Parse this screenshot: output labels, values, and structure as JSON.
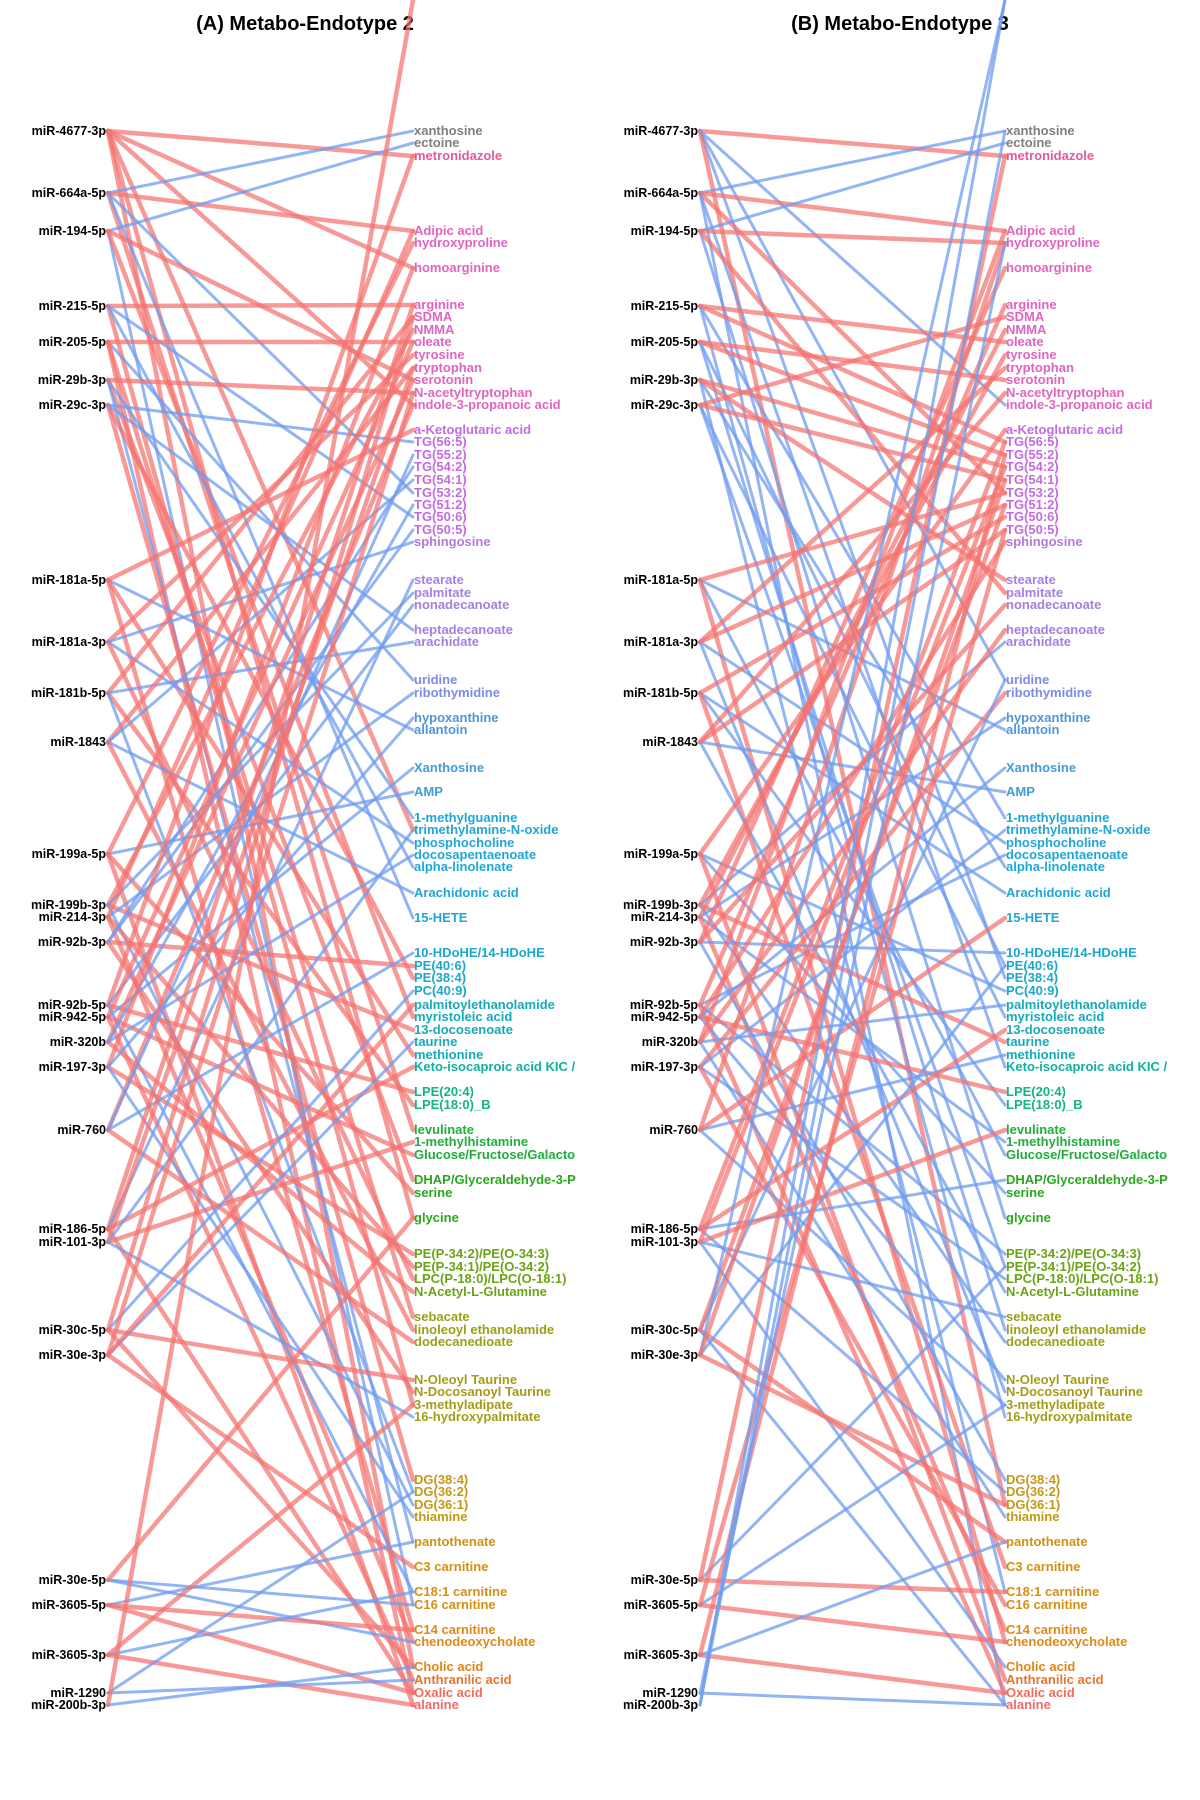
{
  "panels": [
    {
      "id": "A",
      "title": "(A) Metabo-Endotype 2"
    },
    {
      "id": "B",
      "title": "(B) Metabo-Endotype 3"
    }
  ],
  "mirnas": [
    "miR-4677-3p",
    "miR-664a-5p",
    "miR-194-5p",
    "miR-215-5p",
    "miR-205-5p",
    "miR-29b-3p",
    "miR-29c-3p",
    "miR-181a-5p",
    "miR-181a-3p",
    "miR-181b-5p",
    "miR-1843",
    "miR-199a-5p",
    "miR-199b-3p",
    "miR-214-3p",
    "miR-92b-3p",
    "miR-92b-5p",
    "miR-942-5p",
    "miR-320b",
    "miR-197-3p",
    "miR-760",
    "miR-186-5p",
    "miR-101-3p",
    "miR-30c-5p",
    "miR-30e-3p",
    "miR-30e-5p",
    "miR-3605-5p",
    "miR-3605-3p",
    "miR-1290",
    "miR-200b-3p"
  ],
  "metabolites": [
    {
      "name": "xanthosine",
      "color": "#7f7f7f"
    },
    {
      "name": "ectoine",
      "color": "#7f7f7f"
    },
    {
      "name": "metronidazole",
      "color": "#e6589b"
    },
    {
      "name": "Adipic acid",
      "color": "#e064c2"
    },
    {
      "name": "hydroxyproline",
      "color": "#e064c2"
    },
    {
      "name": "homoarginine",
      "color": "#e064c2"
    },
    {
      "name": "arginine",
      "color": "#e064c2"
    },
    {
      "name": "SDMA",
      "color": "#e064c2"
    },
    {
      "name": "NMMA",
      "color": "#e064c2"
    },
    {
      "name": "oleate",
      "color": "#e064c2"
    },
    {
      "name": "tyrosine",
      "color": "#e064c2"
    },
    {
      "name": "tryptophan",
      "color": "#e064c2"
    },
    {
      "name": "serotonin",
      "color": "#e064c2"
    },
    {
      "name": "N-acetyltryptophan",
      "color": "#e064c2"
    },
    {
      "name": "indole-3-propanoic acid",
      "color": "#e064c2"
    },
    {
      "name": "a-Ketoglutaric acid",
      "color": "#c46be0"
    },
    {
      "name": "TG(56:5)",
      "color": "#c46be0"
    },
    {
      "name": "TG(55:2)",
      "color": "#c46be0"
    },
    {
      "name": "TG(54:2)",
      "color": "#c46be0"
    },
    {
      "name": "TG(54:1)",
      "color": "#c46be0"
    },
    {
      "name": "TG(53:2)",
      "color": "#c46be0"
    },
    {
      "name": "TG(51:2)",
      "color": "#c46be0"
    },
    {
      "name": "TG(50:6)",
      "color": "#c46be0"
    },
    {
      "name": "TG(50:5)",
      "color": "#c46be0"
    },
    {
      "name": "sphingosine",
      "color": "#b27ae0"
    },
    {
      "name": "stearate",
      "color": "#a57fe0"
    },
    {
      "name": "palmitate",
      "color": "#a57fe0"
    },
    {
      "name": "nonadecanoate",
      "color": "#a57fe0"
    },
    {
      "name": "heptadecanoate",
      "color": "#a57fe0"
    },
    {
      "name": "arachidate",
      "color": "#a57fe0"
    },
    {
      "name": "uridine",
      "color": "#7f8be0"
    },
    {
      "name": "ribothymidine",
      "color": "#7f8be0"
    },
    {
      "name": "hypoxanthine",
      "color": "#4f96d8"
    },
    {
      "name": "allantoin",
      "color": "#4f96d8"
    },
    {
      "name": "Xanthosine",
      "color": "#3f9ed9"
    },
    {
      "name": "AMP",
      "color": "#3f9ed9"
    },
    {
      "name": "1-methylguanine",
      "color": "#1fa6d6"
    },
    {
      "name": "trimethylamine-N-oxide",
      "color": "#1fa6d6"
    },
    {
      "name": "phosphocholine",
      "color": "#1fa6d6"
    },
    {
      "name": "docosapentaenoate",
      "color": "#1fa6d6"
    },
    {
      "name": "alpha-linolenate",
      "color": "#1fa6d6"
    },
    {
      "name": "Arachidonic acid",
      "color": "#1fa6d6"
    },
    {
      "name": "15-HETE",
      "color": "#1fa6d6"
    },
    {
      "name": "10-HDoHE/14-HDoHE",
      "color": "#1aa8cc"
    },
    {
      "name": "PE(40:6)",
      "color": "#1aa8cc"
    },
    {
      "name": "PE(38:4)",
      "color": "#1aa8cc"
    },
    {
      "name": "PC(40:9)",
      "color": "#1aa8cc"
    },
    {
      "name": "palmitoylethanolamide",
      "color": "#17aabb"
    },
    {
      "name": "myristoleic acid",
      "color": "#17aabb"
    },
    {
      "name": "13-docosenoate",
      "color": "#17aabb"
    },
    {
      "name": "taurine",
      "color": "#17aabb"
    },
    {
      "name": "methionine",
      "color": "#17aabb"
    },
    {
      "name": "Keto-isocaproic acid KIC /",
      "color": "#10b0a0"
    },
    {
      "name": "LPE(20:4)",
      "color": "#14b57e"
    },
    {
      "name": "LPE(18:0)_B",
      "color": "#14b57e"
    },
    {
      "name": "levulinate",
      "color": "#1fae3c"
    },
    {
      "name": "1-methylhistamine",
      "color": "#1fae3c"
    },
    {
      "name": "Glucose/Fructose/Galacto",
      "color": "#1fae3c"
    },
    {
      "name": "DHAP/Glyceraldehyde-3-P",
      "color": "#29a81e"
    },
    {
      "name": "serine",
      "color": "#29a81e"
    },
    {
      "name": "glycine",
      "color": "#29a81e"
    },
    {
      "name": "PE(P-34:2)/PE(O-34:3)",
      "color": "#6aa316"
    },
    {
      "name": "PE(P-34:1)/PE(O-34:2)",
      "color": "#6aa316"
    },
    {
      "name": "LPC(P-18:0)/LPC(O-18:1)",
      "color": "#6aa316"
    },
    {
      "name": "N-Acetyl-L-Glutamine",
      "color": "#6aa316"
    },
    {
      "name": "sebacate",
      "color": "#9aa016"
    },
    {
      "name": "linoleoyl ethanolamide",
      "color": "#9aa016"
    },
    {
      "name": "dodecanedioate",
      "color": "#9aa016"
    },
    {
      "name": "N-Oleoyl Taurine",
      "color": "#a59c16"
    },
    {
      "name": "N-Docosanoyl Taurine",
      "color": "#a59c16"
    },
    {
      "name": "3-methyladipate",
      "color": "#a59c16"
    },
    {
      "name": "16-hydroxypalmitate",
      "color": "#a59c16"
    },
    {
      "name": "DG(38:4)",
      "color": "#c29916"
    },
    {
      "name": "DG(36:2)",
      "color": "#c29916"
    },
    {
      "name": "DG(36:1)",
      "color": "#c29916"
    },
    {
      "name": "thiamine",
      "color": "#c29916"
    },
    {
      "name": "pantothenate",
      "color": "#cc9416"
    },
    {
      "name": "C3 carnitine",
      "color": "#d68e16"
    },
    {
      "name": "C18:1 carnitine",
      "color": "#d68e16"
    },
    {
      "name": "C16 carnitine",
      "color": "#d68e16"
    },
    {
      "name": "C14 carnitine",
      "color": "#dd8a16"
    },
    {
      "name": "chenodeoxycholate",
      "color": "#dd8a16"
    },
    {
      "name": "Cholic acid",
      "color": "#e28516"
    },
    {
      "name": "Anthranilic acid",
      "color": "#e8752e"
    },
    {
      "name": "Oxalic acid",
      "color": "#ee6c5a"
    },
    {
      "name": "alanine",
      "color": "#f06a6a"
    }
  ],
  "edge_colors": {
    "positive": "#f4726f",
    "negative": "#6f9cf0"
  },
  "edges": {
    "A": [
      [
        0,
        2,
        "positive"
      ],
      [
        0,
        14,
        "positive"
      ],
      [
        0,
        37,
        "positive"
      ],
      [
        0,
        60,
        "positive"
      ],
      [
        0,
        82,
        "positive"
      ],
      [
        0,
        5,
        "positive"
      ],
      [
        1,
        0,
        "negative"
      ],
      [
        1,
        20,
        "negative"
      ],
      [
        1,
        55,
        "positive"
      ],
      [
        1,
        3,
        "positive"
      ],
      [
        1,
        42,
        "negative"
      ],
      [
        2,
        1,
        "negative"
      ],
      [
        2,
        12,
        "positive"
      ],
      [
        2,
        79,
        "negative"
      ],
      [
        2,
        48,
        "positive"
      ],
      [
        3,
        6,
        "positive"
      ],
      [
        3,
        22,
        "negative"
      ],
      [
        3,
        70,
        "positive"
      ],
      [
        3,
        40,
        "negative"
      ],
      [
        4,
        9,
        "positive"
      ],
      [
        4,
        30,
        "negative"
      ],
      [
        4,
        65,
        "positive"
      ],
      [
        4,
        84,
        "positive"
      ],
      [
        5,
        13,
        "positive"
      ],
      [
        5,
        36,
        "negative"
      ],
      [
        5,
        58,
        "positive"
      ],
      [
        5,
        76,
        "negative"
      ],
      [
        6,
        16,
        "negative"
      ],
      [
        6,
        45,
        "positive"
      ],
      [
        6,
        72,
        "positive"
      ],
      [
        6,
        28,
        "negative"
      ],
      [
        7,
        15,
        "positive"
      ],
      [
        7,
        33,
        "negative"
      ],
      [
        7,
        51,
        "positive"
      ],
      [
        7,
        80,
        "positive"
      ],
      [
        8,
        10,
        "positive"
      ],
      [
        8,
        38,
        "negative"
      ],
      [
        8,
        63,
        "positive"
      ],
      [
        8,
        24,
        "negative"
      ],
      [
        9,
        7,
        "positive"
      ],
      [
        9,
        29,
        "negative"
      ],
      [
        9,
        54,
        "positive"
      ],
      [
        9,
        73,
        "negative"
      ],
      [
        10,
        11,
        "positive"
      ],
      [
        10,
        41,
        "negative"
      ],
      [
        10,
        66,
        "positive"
      ],
      [
        10,
        19,
        "negative"
      ],
      [
        11,
        4,
        "positive"
      ],
      [
        11,
        35,
        "negative"
      ],
      [
        11,
        59,
        "positive"
      ],
      [
        11,
        85,
        "positive"
      ],
      [
        12,
        8,
        "positive"
      ],
      [
        12,
        26,
        "negative"
      ],
      [
        12,
        49,
        "positive"
      ],
      [
        12,
        74,
        "negative"
      ],
      [
        13,
        3,
        "positive"
      ],
      [
        13,
        31,
        "negative"
      ],
      [
        13,
        62,
        "positive"
      ],
      [
        13,
        81,
        "positive"
      ],
      [
        14,
        18,
        "negative"
      ],
      [
        14,
        44,
        "positive"
      ],
      [
        14,
        69,
        "positive"
      ],
      [
        14,
        23,
        "negative"
      ],
      [
        15,
        2,
        "positive"
      ],
      [
        15,
        27,
        "negative"
      ],
      [
        15,
        53,
        "positive"
      ],
      [
        15,
        78,
        "negative"
      ],
      [
        16,
        9,
        "positive"
      ],
      [
        16,
        34,
        "negative"
      ],
      [
        16,
        57,
        "positive"
      ],
      [
        16,
        83,
        "positive"
      ],
      [
        17,
        12,
        "positive"
      ],
      [
        17,
        39,
        "negative"
      ],
      [
        17,
        64,
        "positive"
      ],
      [
        17,
        21,
        "negative"
      ],
      [
        18,
        5,
        "positive"
      ],
      [
        18,
        32,
        "negative"
      ],
      [
        18,
        61,
        "positive"
      ],
      [
        18,
        75,
        "negative"
      ],
      [
        19,
        14,
        "positive"
      ],
      [
        19,
        43,
        "negative"
      ],
      [
        19,
        67,
        "positive"
      ],
      [
        19,
        17,
        "negative"
      ],
      [
        20,
        6,
        "positive"
      ],
      [
        20,
        25,
        "negative"
      ],
      [
        20,
        52,
        "positive"
      ],
      [
        20,
        84,
        "positive"
      ],
      [
        21,
        11,
        "positive"
      ],
      [
        21,
        37,
        "negative"
      ],
      [
        21,
        56,
        "positive"
      ],
      [
        21,
        71,
        "negative"
      ],
      [
        22,
        7,
        "positive"
      ],
      [
        22,
        46,
        "negative"
      ],
      [
        22,
        68,
        "positive"
      ],
      [
        22,
        82,
        "positive"
      ],
      [
        23,
        13,
        "positive"
      ],
      [
        23,
        50,
        "negative"
      ],
      [
        23,
        77,
        "positive"
      ],
      [
        23,
        47,
        "positive"
      ],
      [
        24,
        79,
        "negative"
      ],
      [
        24,
        81,
        "negative"
      ],
      [
        24,
        60,
        "positive"
      ],
      [
        25,
        84,
        "positive"
      ],
      [
        25,
        76,
        "negative"
      ],
      [
        25,
        80,
        "positive"
      ],
      [
        26,
        78,
        "negative"
      ],
      [
        26,
        85,
        "positive"
      ],
      [
        26,
        70,
        "positive"
      ],
      [
        27,
        83,
        "negative"
      ],
      [
        27,
        73,
        "negative"
      ],
      [
        28,
        86,
        "positive"
      ],
      [
        28,
        82,
        "negative"
      ]
    ],
    "B": [
      [
        0,
        2,
        "positive"
      ],
      [
        0,
        30,
        "negative"
      ],
      [
        0,
        45,
        "negative"
      ],
      [
        0,
        74,
        "positive"
      ],
      [
        0,
        14,
        "negative"
      ],
      [
        1,
        0,
        "negative"
      ],
      [
        1,
        3,
        "positive"
      ],
      [
        1,
        52,
        "negative"
      ],
      [
        1,
        20,
        "positive"
      ],
      [
        1,
        85,
        "negative"
      ],
      [
        2,
        1,
        "negative"
      ],
      [
        2,
        4,
        "positive"
      ],
      [
        2,
        60,
        "negative"
      ],
      [
        2,
        26,
        "positive"
      ],
      [
        3,
        16,
        "positive"
      ],
      [
        3,
        36,
        "negative"
      ],
      [
        3,
        71,
        "negative"
      ],
      [
        3,
        9,
        "positive"
      ],
      [
        4,
        17,
        "positive"
      ],
      [
        4,
        44,
        "negative"
      ],
      [
        4,
        66,
        "negative"
      ],
      [
        4,
        12,
        "positive"
      ],
      [
        5,
        18,
        "positive"
      ],
      [
        5,
        40,
        "negative"
      ],
      [
        5,
        78,
        "negative"
      ],
      [
        5,
        25,
        "positive"
      ],
      [
        6,
        19,
        "positive"
      ],
      [
        6,
        48,
        "negative"
      ],
      [
        6,
        62,
        "negative"
      ],
      [
        6,
        7,
        "positive"
      ],
      [
        7,
        20,
        "positive"
      ],
      [
        7,
        33,
        "negative"
      ],
      [
        7,
        57,
        "negative"
      ],
      [
        7,
        81,
        "positive"
      ],
      [
        8,
        21,
        "positive"
      ],
      [
        8,
        38,
        "negative"
      ],
      [
        8,
        69,
        "negative"
      ],
      [
        8,
        11,
        "positive"
      ],
      [
        9,
        22,
        "positive"
      ],
      [
        9,
        41,
        "negative"
      ],
      [
        9,
        54,
        "negative"
      ],
      [
        9,
        77,
        "positive"
      ],
      [
        10,
        23,
        "positive"
      ],
      [
        10,
        35,
        "negative"
      ],
      [
        10,
        64,
        "negative"
      ],
      [
        10,
        13,
        "positive"
      ],
      [
        11,
        15,
        "positive"
      ],
      [
        11,
        46,
        "negative"
      ],
      [
        11,
        59,
        "negative"
      ],
      [
        11,
        83,
        "positive"
      ],
      [
        12,
        10,
        "positive"
      ],
      [
        12,
        29,
        "negative"
      ],
      [
        12,
        67,
        "negative"
      ],
      [
        12,
        50,
        "positive"
      ],
      [
        13,
        8,
        "positive"
      ],
      [
        13,
        32,
        "negative"
      ],
      [
        13,
        56,
        "negative"
      ],
      [
        13,
        80,
        "positive"
      ],
      [
        14,
        5,
        "positive"
      ],
      [
        14,
        43,
        "negative"
      ],
      [
        14,
        72,
        "negative"
      ],
      [
        14,
        27,
        "positive"
      ],
      [
        15,
        6,
        "positive"
      ],
      [
        15,
        39,
        "negative"
      ],
      [
        15,
        61,
        "negative"
      ],
      [
        15,
        84,
        "positive"
      ],
      [
        16,
        24,
        "positive"
      ],
      [
        16,
        34,
        "negative"
      ],
      [
        16,
        68,
        "negative"
      ],
      [
        16,
        53,
        "positive"
      ],
      [
        17,
        28,
        "positive"
      ],
      [
        17,
        47,
        "negative"
      ],
      [
        17,
        75,
        "negative"
      ],
      [
        17,
        3,
        "positive"
      ],
      [
        18,
        31,
        "positive"
      ],
      [
        18,
        37,
        "negative"
      ],
      [
        18,
        63,
        "negative"
      ],
      [
        18,
        79,
        "positive"
      ],
      [
        19,
        42,
        "positive"
      ],
      [
        19,
        51,
        "negative"
      ],
      [
        19,
        70,
        "negative"
      ],
      [
        19,
        4,
        "positive"
      ],
      [
        20,
        49,
        "positive"
      ],
      [
        20,
        58,
        "negative"
      ],
      [
        20,
        73,
        "negative"
      ],
      [
        20,
        16,
        "positive"
      ],
      [
        21,
        55,
        "positive"
      ],
      [
        21,
        65,
        "negative"
      ],
      [
        21,
        82,
        "negative"
      ],
      [
        21,
        18,
        "positive"
      ],
      [
        22,
        76,
        "positive"
      ],
      [
        22,
        30,
        "negative"
      ],
      [
        22,
        85,
        "negative"
      ],
      [
        22,
        21,
        "positive"
      ],
      [
        23,
        74,
        "positive"
      ],
      [
        23,
        44,
        "negative"
      ],
      [
        23,
        86,
        "negative"
      ],
      [
        23,
        19,
        "positive"
      ],
      [
        24,
        78,
        "positive"
      ],
      [
        24,
        62,
        "negative"
      ],
      [
        24,
        2,
        "positive"
      ],
      [
        25,
        81,
        "positive"
      ],
      [
        25,
        70,
        "negative"
      ],
      [
        25,
        23,
        "positive"
      ],
      [
        26,
        84,
        "positive"
      ],
      [
        26,
        76,
        "negative"
      ],
      [
        26,
        17,
        "positive"
      ],
      [
        27,
        85,
        "negative"
      ],
      [
        27,
        4,
        "negative"
      ],
      [
        28,
        86,
        "negative"
      ],
      [
        28,
        0,
        "negative"
      ]
    ]
  }
}
